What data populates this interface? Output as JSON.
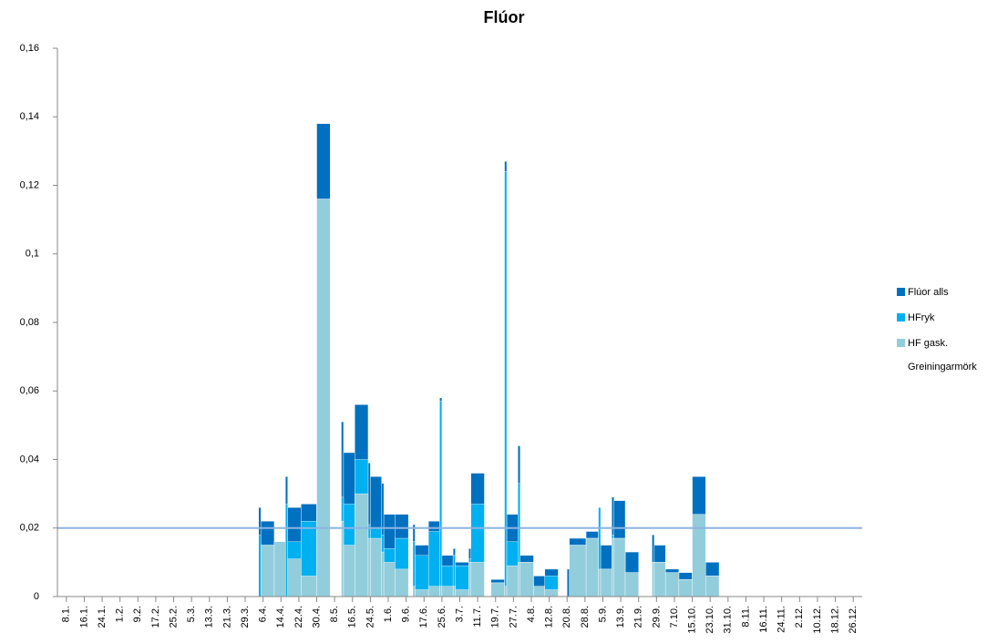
{
  "chart_data": {
    "type": "step-area",
    "title": "Flúor",
    "x": [
      94,
      95,
      101,
      106,
      107,
      113,
      120,
      126,
      131,
      132,
      137,
      143,
      144,
      149,
      150,
      155,
      161,
      163,
      164,
      170,
      175,
      176,
      181,
      182,
      188,
      189,
      195,
      198,
      204,
      205,
      210,
      211,
      217,
      222,
      228,
      232,
      233,
      240.5,
      246,
      247,
      252,
      253,
      258,
      264,
      270,
      271,
      276,
      282,
      288,
      294,
      300
    ],
    "series": [
      {
        "name": "Flúor alls",
        "color": "#0070c0",
        "values": [
          0.026,
          0.022,
          0.016,
          0.035,
          0.026,
          0.027,
          0.138,
          null,
          0.051,
          0.042,
          0.056,
          0.039,
          0.035,
          0.033,
          0.024,
          0.024,
          null,
          0.021,
          0.015,
          0.022,
          0.058,
          0.012,
          0.014,
          0.01,
          0.014,
          0.036,
          null,
          0.005,
          0.127,
          0.024,
          0.044,
          0.012,
          0.006,
          0.008,
          null,
          0.008,
          0.017,
          0.019,
          0.026,
          0.015,
          0.029,
          0.028,
          0.013,
          null,
          0.018,
          0.015,
          0.008,
          0.007,
          0.035,
          0.01,
          null
        ]
      },
      {
        "name": "HFryk",
        "color": "#00b0f0",
        "values": [
          0.018,
          0.015,
          0.016,
          0.027,
          0.016,
          0.022,
          0.116,
          null,
          0.029,
          0.027,
          0.04,
          0.021,
          0.02,
          0.018,
          0.014,
          0.017,
          null,
          0.016,
          0.012,
          0.019,
          0.057,
          0.009,
          0.012,
          0.009,
          0.011,
          0.027,
          null,
          0.004,
          0.124,
          0.016,
          0.033,
          0.01,
          0.003,
          0.006,
          null,
          0,
          0.015,
          0.017,
          0.026,
          0.008,
          0.018,
          0.017,
          0.007,
          null,
          0.01,
          0.01,
          0.007,
          0.005,
          0.024,
          0.006,
          null
        ]
      },
      {
        "name": "HF gask.",
        "color": "#92cddc",
        "values": [
          0,
          0.015,
          0.016,
          0,
          0.011,
          0.006,
          0.116,
          null,
          0.022,
          0.015,
          0.03,
          0.017,
          0.017,
          0.013,
          0.01,
          0.008,
          null,
          0.003,
          0.002,
          0.003,
          0.003,
          0.003,
          0.003,
          0.002,
          0.01,
          0.01,
          null,
          0.004,
          0.003,
          0.009,
          0.01,
          0.01,
          0.003,
          0.002,
          null,
          0,
          0.015,
          0.017,
          0.008,
          0.008,
          0.017,
          0.017,
          0.007,
          null,
          0.01,
          0.01,
          0.007,
          0.005,
          0.024,
          0.006,
          null
        ]
      }
    ],
    "reference_lines": [
      {
        "name": "Greiningarmörk",
        "value": 0.02,
        "color": "#8db4e2"
      }
    ],
    "xlim": [
      4,
      364
    ],
    "xticks": [
      {
        "value": 8,
        "label": "8.1."
      },
      {
        "value": 16,
        "label": "16.1."
      },
      {
        "value": 24,
        "label": "24.1."
      },
      {
        "value": 32,
        "label": "1.2."
      },
      {
        "value": 40,
        "label": "9.2."
      },
      {
        "value": 48,
        "label": "17.2."
      },
      {
        "value": 56,
        "label": "25.2."
      },
      {
        "value": 64,
        "label": "5.3."
      },
      {
        "value": 72,
        "label": "13.3."
      },
      {
        "value": 80,
        "label": "21.3."
      },
      {
        "value": 88,
        "label": "29.3."
      },
      {
        "value": 96,
        "label": "6.4."
      },
      {
        "value": 104,
        "label": "14.4."
      },
      {
        "value": 112,
        "label": "22.4."
      },
      {
        "value": 120,
        "label": "30.4."
      },
      {
        "value": 128,
        "label": "8.5."
      },
      {
        "value": 136,
        "label": "16.5."
      },
      {
        "value": 144,
        "label": "24.5."
      },
      {
        "value": 152,
        "label": "1.6."
      },
      {
        "value": 160,
        "label": "9.6."
      },
      {
        "value": 168,
        "label": "17.6."
      },
      {
        "value": 176,
        "label": "25.6."
      },
      {
        "value": 184,
        "label": "3.7."
      },
      {
        "value": 192,
        "label": "11.7."
      },
      {
        "value": 200,
        "label": "19.7."
      },
      {
        "value": 208,
        "label": "27.7."
      },
      {
        "value": 216,
        "label": "4.8."
      },
      {
        "value": 224,
        "label": "12.8."
      },
      {
        "value": 232,
        "label": "20.8."
      },
      {
        "value": 240,
        "label": "28.8."
      },
      {
        "value": 248,
        "label": "5.9."
      },
      {
        "value": 256,
        "label": "13.9."
      },
      {
        "value": 264,
        "label": "21.9."
      },
      {
        "value": 272,
        "label": "29.9."
      },
      {
        "value": 280,
        "label": "7.10."
      },
      {
        "value": 288,
        "label": "15.10."
      },
      {
        "value": 296,
        "label": "23.10."
      },
      {
        "value": 304,
        "label": "31.10."
      },
      {
        "value": 312,
        "label": "8.11."
      },
      {
        "value": 320,
        "label": "16.11."
      },
      {
        "value": 328,
        "label": "24.11."
      },
      {
        "value": 336,
        "label": "2.12."
      },
      {
        "value": 344,
        "label": "10.12."
      },
      {
        "value": 352,
        "label": "18.12."
      },
      {
        "value": 360,
        "label": "26.12."
      }
    ],
    "ylim": [
      0,
      0.16
    ],
    "yticks": [
      0,
      {
        "value": 0.02,
        "label": "0,02"
      },
      {
        "value": 0.04,
        "label": "0,04"
      },
      {
        "value": 0.06,
        "label": "0,06"
      },
      {
        "value": 0.08,
        "label": "0,08"
      },
      {
        "value": 0.1,
        "label": "0,1"
      },
      {
        "value": 0.12,
        "label": "0,12"
      },
      {
        "value": 0.14,
        "label": "0,14"
      },
      {
        "value": 0.16,
        "label": "0,16"
      }
    ],
    "legend": "right"
  }
}
